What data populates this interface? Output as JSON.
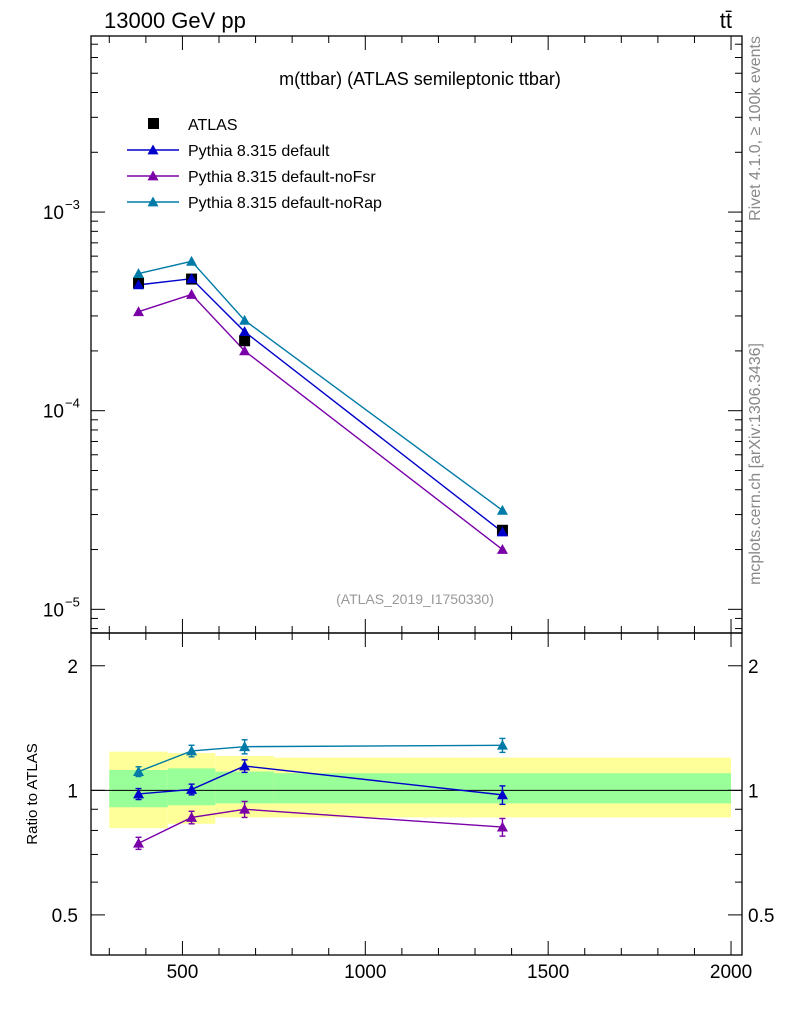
{
  "header": {
    "energy_label": "13000 GeV pp",
    "process_label": "tt̄"
  },
  "side_labels": {
    "rivet": "Rivet 4.1.0, ≥ 100k events",
    "source": "mcplots.cern.ch [arXiv:1306.3436]"
  },
  "chart_data": [
    {
      "id": "main",
      "type": "line",
      "title": "m(ttbar) (ATLAS semileptonic ttbar)",
      "analysis_label": "(ATLAS_2019_I1750330)",
      "yscale": "log",
      "ylim": [
        7.6e-06,
        0.0077
      ],
      "xlim": [
        250,
        2030
      ],
      "ytick_labels": [
        {
          "value": 0.001,
          "base": "10",
          "exp": "−3"
        },
        {
          "value": 0.0001,
          "base": "10",
          "exp": "−4"
        },
        {
          "value": 1e-05,
          "base": "10",
          "exp": "−5"
        }
      ],
      "legend_position": "top-left",
      "series": [
        {
          "name": "ATLAS",
          "kind": "data",
          "color": "#000000",
          "x": [
            380,
            525,
            670,
            1375
          ],
          "y": [
            0.00044,
            0.00046,
            0.000225,
            2.5e-05
          ]
        },
        {
          "name": "Pythia 8.315 default",
          "kind": "mc",
          "color": "#0000cc",
          "x": [
            380,
            525,
            670,
            1375
          ],
          "y": [
            0.00043,
            0.000462,
            0.00025,
            2.45e-05
          ]
        },
        {
          "name": "Pythia 8.315 default-noFsr",
          "kind": "mc",
          "color": "#7a00a8",
          "x": [
            380,
            525,
            670,
            1375
          ],
          "y": [
            0.000315,
            0.000385,
            0.0002,
            2e-05
          ]
        },
        {
          "name": "Pythia 8.315 default-noRap",
          "kind": "mc",
          "color": "#007ba7",
          "x": [
            380,
            525,
            670,
            1375
          ],
          "y": [
            0.00049,
            0.000565,
            0.000285,
            3.15e-05
          ]
        }
      ]
    },
    {
      "id": "ratio",
      "type": "line",
      "ylabel": "Ratio to ATLAS",
      "yscale": "log",
      "ylim": [
        0.4,
        2.4
      ],
      "xlim": [
        250,
        2030
      ],
      "xticks": [
        500,
        1000,
        1500,
        2000
      ],
      "yticks": [
        0.5,
        1,
        2
      ],
      "reference_line": 1,
      "bins": [
        {
          "lo": 300,
          "hi": 460,
          "green": [
            0.91,
            1.12
          ],
          "yellow": [
            0.81,
            1.24
          ]
        },
        {
          "lo": 460,
          "hi": 590,
          "green": [
            0.92,
            1.13
          ],
          "yellow": [
            0.83,
            1.23
          ]
        },
        {
          "lo": 590,
          "hi": 750,
          "green": [
            0.93,
            1.11
          ],
          "yellow": [
            0.86,
            1.21
          ]
        },
        {
          "lo": 750,
          "hi": 2000,
          "green": [
            0.93,
            1.1
          ],
          "yellow": [
            0.86,
            1.2
          ]
        }
      ],
      "series": [
        {
          "name": "Pythia 8.315 default",
          "color": "#0000cc",
          "x": [
            380,
            525,
            670,
            1375
          ],
          "y": [
            0.98,
            1.005,
            1.145,
            0.975
          ],
          "err": [
            0.03,
            0.03,
            0.04,
            0.05
          ]
        },
        {
          "name": "Pythia 8.315 default-noFsr",
          "color": "#7a00a8",
          "x": [
            380,
            525,
            670,
            1375
          ],
          "y": [
            0.745,
            0.86,
            0.9,
            0.815
          ],
          "err": [
            0.025,
            0.03,
            0.04,
            0.04
          ]
        },
        {
          "name": "Pythia 8.315 default-noRap",
          "color": "#007ba7",
          "x": [
            380,
            525,
            670,
            1375
          ],
          "y": [
            1.11,
            1.245,
            1.275,
            1.285
          ],
          "err": [
            0.03,
            0.04,
            0.05,
            0.05
          ]
        }
      ]
    }
  ]
}
